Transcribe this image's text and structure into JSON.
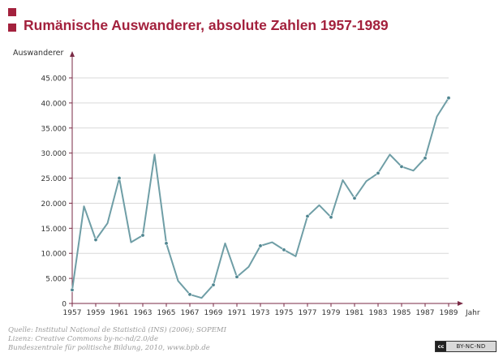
{
  "header": {
    "title": "Rumänische Auswanderer, absolute Zahlen 1957-1989"
  },
  "colors": {
    "accent": "#a3213d",
    "line": "#6f9ea6",
    "axis": "#7a2a45",
    "grid": "#d9d9d9"
  },
  "chart_data": {
    "type": "line",
    "title": "Rumänische Auswanderer, absolute Zahlen 1957-1989",
    "ylabel": "Auswanderer",
    "xlabel": "Jahr",
    "ylim": [
      0,
      45000
    ],
    "xlim": [
      1957,
      1989
    ],
    "grid": true,
    "yticks": [
      0,
      5000,
      10000,
      15000,
      20000,
      25000,
      30000,
      35000,
      40000,
      45000
    ],
    "ytick_labels": [
      "0",
      "5.000",
      "10.000",
      "15.000",
      "20.000",
      "25.000",
      "30.000",
      "35.000",
      "40.000",
      "45.000"
    ],
    "xticks": [
      1957,
      1959,
      1961,
      1963,
      1965,
      1967,
      1969,
      1971,
      1973,
      1975,
      1977,
      1979,
      1981,
      1983,
      1985,
      1987,
      1989
    ],
    "xtick_labels": [
      "1957",
      "1959",
      "1961",
      "1963",
      "1965",
      "1967",
      "1969",
      "1971",
      "1973",
      "1975",
      "1977",
      "1979",
      "1981",
      "1983",
      "1985",
      "1987",
      "1989"
    ],
    "series": [
      {
        "x": [
          1957,
          1958,
          1959,
          1960,
          1961,
          1962,
          1963,
          1964,
          1965,
          1966,
          1967,
          1968,
          1969,
          1970,
          1971,
          1972,
          1973,
          1974,
          1975,
          1976,
          1977,
          1978,
          1979,
          1980,
          1981,
          1982,
          1983,
          1984,
          1985,
          1986,
          1987,
          1988,
          1989
        ],
        "values": [
          2700,
          19400,
          12700,
          16000,
          25000,
          12200,
          13600,
          29700,
          12000,
          4500,
          1800,
          1100,
          3700,
          12000,
          5300,
          7300,
          11500,
          12200,
          10700,
          9400,
          17400,
          19600,
          17200,
          24600,
          21000,
          24400,
          26000,
          29700,
          27300,
          26500,
          29000,
          37300,
          41000
        ],
        "markers": [
          1957,
          1959,
          1961,
          1963,
          1965,
          1967,
          1969,
          1971,
          1973,
          1975,
          1977,
          1979,
          1981,
          1983,
          1985,
          1987,
          1989
        ]
      }
    ]
  },
  "source": {
    "line1": "Quelle: Institutul Național de Statistică (INS) (2006); SOPEMI",
    "line2": "Lizenz: Creative Commons by-nc-nd/2.0/de",
    "line3": "Bundeszentrale für politische Bildung, 2010, www.bpb.de"
  },
  "license_badge": {
    "logo": "cc",
    "text": "BY-NC-ND"
  }
}
